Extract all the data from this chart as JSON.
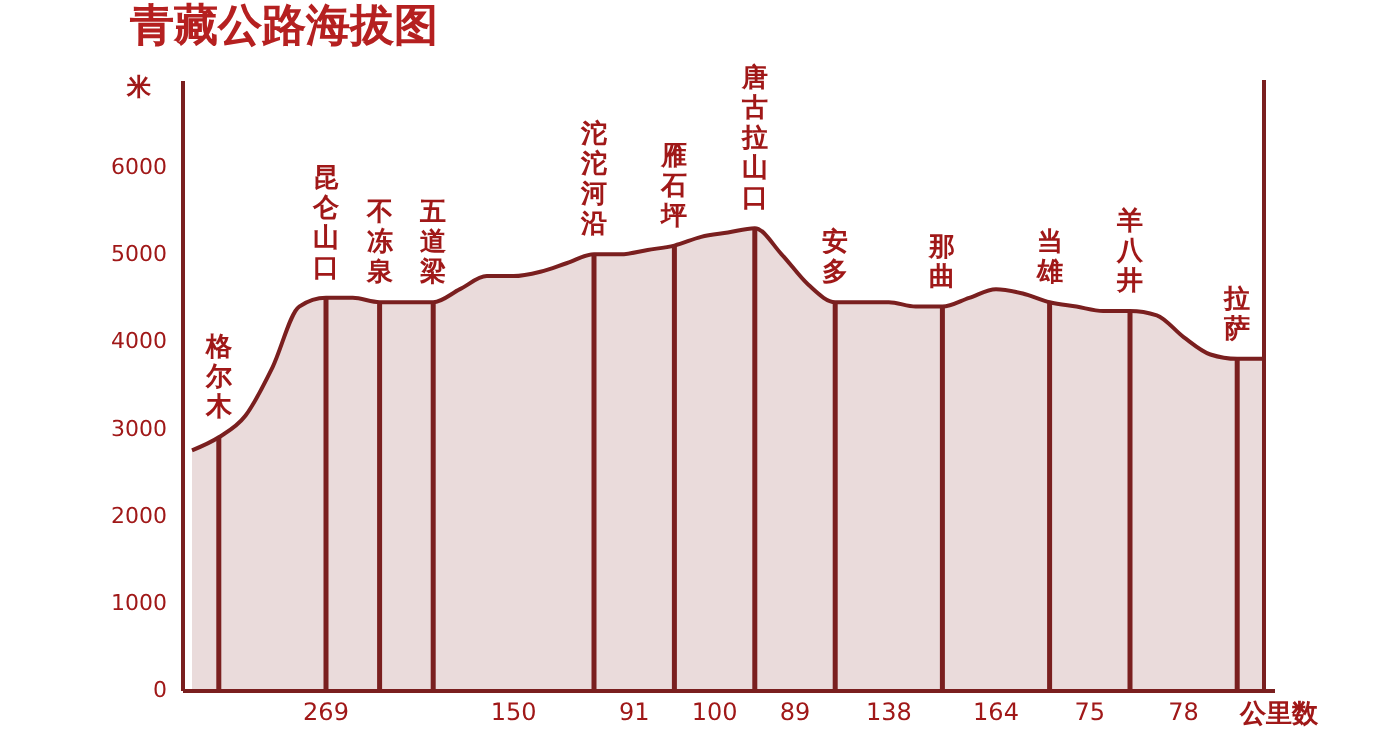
{
  "chart_data": {
    "type": "area",
    "title": "青藏公路海拔图",
    "xlabel": "公里数",
    "ylabel": "米",
    "categories": [
      null,
      "格尔木",
      null,
      null,
      null,
      "昆仑山口",
      null,
      "不冻泉",
      null,
      "五道梁",
      null,
      null,
      null,
      null,
      null,
      "沱沱河沿",
      null,
      null,
      "雁石坪",
      null,
      null,
      "唐古拉山口",
      null,
      null,
      "安多",
      null,
      null,
      null,
      "那曲",
      null,
      null,
      null,
      "当雄",
      null,
      null,
      "羊八井",
      null,
      null,
      null,
      "拉萨",
      null
    ],
    "series": [
      {
        "color": "#7a1f1f",
        "values": [
          2750,
          2900,
          3150,
          3700,
          4400,
          4500,
          4500,
          4450,
          4450,
          4450,
          4600,
          4750,
          4750,
          4800,
          4900,
          5000,
          5000,
          5050,
          5100,
          5200,
          5250,
          5300,
          5000,
          4650,
          4450,
          4450,
          4450,
          4400,
          4400,
          4500,
          4600,
          4550,
          4450,
          4400,
          4350,
          4350,
          4300,
          4050,
          3850,
          3800,
          3800
        ]
      },
      {
        "type": "bar",
        "color": "#7a1f1f",
        "values": [
          null,
          2900,
          null,
          null,
          null,
          4500,
          null,
          4450,
          null,
          4450,
          null,
          null,
          null,
          null,
          null,
          5000,
          null,
          null,
          5100,
          null,
          null,
          5300,
          null,
          null,
          4450,
          null,
          null,
          null,
          4400,
          null,
          null,
          null,
          4450,
          null,
          null,
          4350,
          null,
          null,
          null,
          3800,
          null
        ]
      }
    ],
    "ylim": [
      0,
      7000
    ],
    "yticks": [
      0,
      1000,
      2000,
      3000,
      4000,
      5000,
      6000
    ],
    "annotations": [
      "269",
      "150",
      "91",
      "100",
      "89",
      "138",
      "164",
      "75",
      "78"
    ],
    "grid": false
  }
}
